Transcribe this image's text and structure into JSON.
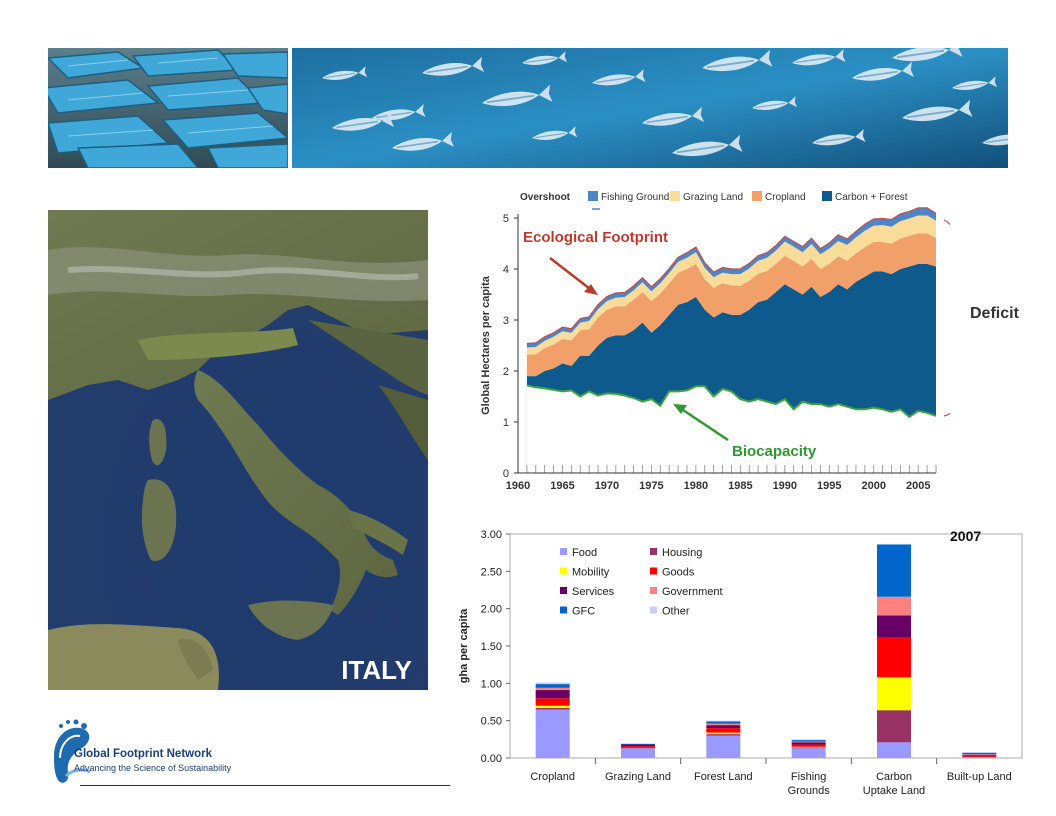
{
  "slide": {
    "country_label": "ITALY",
    "deficit_label": "Deficit",
    "year_label": "2007"
  },
  "logo": {
    "name": "Global Footprint Network",
    "tagline": "Advancing the Science of Sustainability"
  },
  "icons": [
    "boats-photo",
    "fish-photo",
    "satellite-map",
    "footprint-logo-icon"
  ],
  "chart_data": [
    {
      "type": "area",
      "legend": [
        "Overshoot",
        "Fishing Ground",
        "Grazing Land",
        "Cropland",
        "Carbon + Forest"
      ],
      "legend_colors": [
        "#ffffff",
        "#4d86c6",
        "#f9dc9a",
        "#f2a06a",
        "#0f5a8c"
      ],
      "ylabel": "Global Hectares per capita",
      "ylim": [
        0,
        5
      ],
      "yticks": [
        "0",
        "1",
        "2",
        "3",
        "4",
        "5"
      ],
      "xticks": [
        "1960",
        "1965",
        "1970",
        "1975",
        "1980",
        "1985",
        "1990",
        "1995",
        "2000",
        "2005"
      ],
      "x": [
        1961,
        1962,
        1963,
        1964,
        1965,
        1966,
        1967,
        1968,
        1969,
        1970,
        1971,
        1972,
        1973,
        1974,
        1975,
        1976,
        1977,
        1978,
        1979,
        1980,
        1981,
        1982,
        1983,
        1984,
        1985,
        1986,
        1987,
        1988,
        1989,
        1990,
        1991,
        1992,
        1993,
        1994,
        1995,
        1996,
        1997,
        1998,
        1999,
        2000,
        2001,
        2002,
        2003,
        2004,
        2005,
        2006,
        2007
      ],
      "series": [
        {
          "name": "Carbon + Forest",
          "values": [
            1.9,
            1.9,
            2.0,
            2.05,
            2.15,
            2.1,
            2.3,
            2.3,
            2.5,
            2.65,
            2.7,
            2.7,
            2.8,
            2.95,
            2.75,
            2.9,
            3.1,
            3.3,
            3.35,
            3.45,
            3.2,
            3.05,
            3.15,
            3.1,
            3.1,
            3.2,
            3.35,
            3.4,
            3.55,
            3.7,
            3.6,
            3.5,
            3.65,
            3.45,
            3.55,
            3.7,
            3.6,
            3.75,
            3.85,
            3.95,
            3.95,
            3.9,
            4.0,
            4.05,
            4.1,
            4.1,
            4.05
          ]
        },
        {
          "name": "Cropland",
          "values": [
            0.42,
            0.43,
            0.45,
            0.47,
            0.48,
            0.5,
            0.5,
            0.52,
            0.55,
            0.55,
            0.57,
            0.57,
            0.6,
            0.6,
            0.62,
            0.62,
            0.62,
            0.63,
            0.65,
            0.65,
            0.6,
            0.58,
            0.57,
            0.58,
            0.57,
            0.57,
            0.56,
            0.56,
            0.55,
            0.56,
            0.56,
            0.55,
            0.55,
            0.55,
            0.55,
            0.55,
            0.56,
            0.56,
            0.58,
            0.58,
            0.58,
            0.6,
            0.6,
            0.6,
            0.6,
            0.6,
            0.56
          ]
        },
        {
          "name": "Grazing Land",
          "values": [
            0.14,
            0.14,
            0.14,
            0.15,
            0.15,
            0.15,
            0.15,
            0.16,
            0.16,
            0.17,
            0.17,
            0.18,
            0.18,
            0.19,
            0.19,
            0.2,
            0.2,
            0.21,
            0.22,
            0.23,
            0.22,
            0.21,
            0.21,
            0.22,
            0.23,
            0.24,
            0.25,
            0.26,
            0.26,
            0.28,
            0.28,
            0.28,
            0.29,
            0.29,
            0.3,
            0.3,
            0.31,
            0.31,
            0.32,
            0.32,
            0.33,
            0.33,
            0.34,
            0.34,
            0.35,
            0.35,
            0.34
          ]
        },
        {
          "name": "Fishing Ground",
          "values": [
            0.08,
            0.08,
            0.08,
            0.08,
            0.08,
            0.08,
            0.08,
            0.08,
            0.09,
            0.09,
            0.09,
            0.09,
            0.09,
            0.09,
            0.09,
            0.09,
            0.09,
            0.09,
            0.1,
            0.1,
            0.1,
            0.1,
            0.1,
            0.1,
            0.1,
            0.1,
            0.1,
            0.1,
            0.1,
            0.1,
            0.1,
            0.11,
            0.11,
            0.11,
            0.11,
            0.12,
            0.12,
            0.12,
            0.13,
            0.13,
            0.13,
            0.14,
            0.14,
            0.14,
            0.15,
            0.15,
            0.14
          ]
        }
      ],
      "biocapacity": [
        1.72,
        1.68,
        1.66,
        1.63,
        1.6,
        1.62,
        1.5,
        1.6,
        1.52,
        1.56,
        1.55,
        1.52,
        1.47,
        1.4,
        1.45,
        1.32,
        1.6,
        1.6,
        1.62,
        1.7,
        1.7,
        1.5,
        1.65,
        1.6,
        1.45,
        1.4,
        1.45,
        1.4,
        1.35,
        1.45,
        1.25,
        1.4,
        1.35,
        1.35,
        1.3,
        1.35,
        1.3,
        1.25,
        1.25,
        1.28,
        1.25,
        1.2,
        1.25,
        1.1,
        1.22,
        1.18,
        1.12
      ],
      "annotations": [
        {
          "text": "Ecological Footprint",
          "color": "#c0392b"
        },
        {
          "text": "Biocapacity",
          "color": "#2e9a2e"
        }
      ]
    },
    {
      "type": "bar",
      "stacked": true,
      "ylabel": "gha per capita",
      "ylim": [
        0,
        3
      ],
      "yticks": [
        "0.00",
        "0.50",
        "1.00",
        "1.50",
        "2.00",
        "2.50",
        "3.00"
      ],
      "categories": [
        [
          "Cropland"
        ],
        [
          "Grazing Land"
        ],
        [
          "Forest Land"
        ],
        [
          "Fishing",
          "Grounds"
        ],
        [
          "Carbon",
          "Uptake Land"
        ],
        [
          "Built-up Land"
        ]
      ],
      "legend_position": "top-left",
      "series": [
        {
          "name": "Food",
          "color": "#9999ff",
          "values": [
            0.65,
            0.13,
            0.3,
            0.13,
            0.21,
            0.01
          ]
        },
        {
          "name": "Housing",
          "color": "#993366",
          "values": [
            0.02,
            0.01,
            0.02,
            0.01,
            0.43,
            0.01
          ]
        },
        {
          "name": "Mobility",
          "color": "#ffff00",
          "values": [
            0.03,
            0.0,
            0.02,
            0.01,
            0.44,
            0.0
          ]
        },
        {
          "name": "Goods",
          "color": "#ff0000",
          "values": [
            0.1,
            0.02,
            0.06,
            0.03,
            0.53,
            0.01
          ]
        },
        {
          "name": "Services",
          "color": "#660066",
          "values": [
            0.11,
            0.02,
            0.04,
            0.03,
            0.3,
            0.01
          ]
        },
        {
          "name": "Government",
          "color": "#ff8080",
          "values": [
            0.03,
            0.0,
            0.02,
            0.01,
            0.25,
            0.01
          ]
        },
        {
          "name": "GFC",
          "color": "#0066cc",
          "values": [
            0.05,
            0.01,
            0.03,
            0.02,
            0.7,
            0.02
          ]
        },
        {
          "name": "Other",
          "color": "#ccccff",
          "values": [
            0.02,
            0.0,
            0.01,
            0.01,
            0.0,
            0.01
          ]
        }
      ]
    }
  ]
}
